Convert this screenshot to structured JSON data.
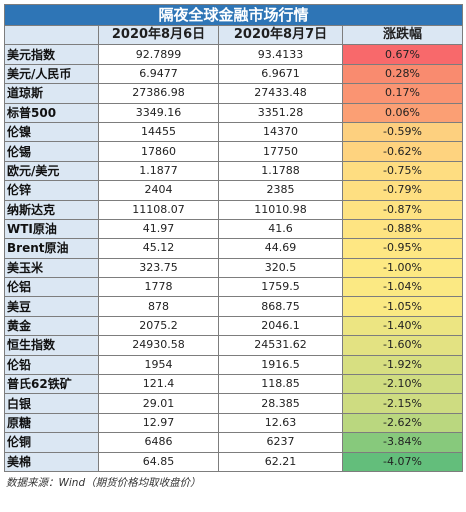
{
  "title": "隔夜全球金融市场行情",
  "columns": [
    "",
    "2020年8月6日",
    "2020年8月7日",
    "涨跌幅"
  ],
  "rows": [
    {
      "name": "美元指数",
      "d1": "92.7899",
      "d2": "93.4133",
      "chg": "0.67%",
      "color": "#f8696b"
    },
    {
      "name": "美元/人民币",
      "d1": "6.9477",
      "d2": "6.9671",
      "chg": "0.28%",
      "color": "#f98b6f"
    },
    {
      "name": "道琼斯",
      "d1": "27386.98",
      "d2": "27433.48",
      "chg": "0.17%",
      "color": "#fa9472"
    },
    {
      "name": "标普500",
      "d1": "3349.16",
      "d2": "3351.28",
      "chg": "0.06%",
      "color": "#fb9f74"
    },
    {
      "name": "伦镍",
      "d1": "14455",
      "d2": "14370",
      "chg": "-0.59%",
      "color": "#fdd07f"
    },
    {
      "name": "伦锡",
      "d1": "17860",
      "d2": "17750",
      "chg": "-0.62%",
      "color": "#fed37f"
    },
    {
      "name": "欧元/美元",
      "d1": "1.1877",
      "d2": "1.1788",
      "chg": "-0.75%",
      "color": "#fedd81"
    },
    {
      "name": "伦锌",
      "d1": "2404",
      "d2": "2385",
      "chg": "-0.79%",
      "color": "#fedf81"
    },
    {
      "name": "纳斯达克",
      "d1": "11108.07",
      "d2": "11010.98",
      "chg": "-0.87%",
      "color": "#fee382"
    },
    {
      "name": "WTI原油",
      "d1": "41.97",
      "d2": "41.6",
      "chg": "-0.88%",
      "color": "#fee482"
    },
    {
      "name": "Brent原油",
      "d1": "45.12",
      "d2": "44.69",
      "chg": "-0.95%",
      "color": "#fee783"
    },
    {
      "name": "美玉米",
      "d1": "323.75",
      "d2": "320.5",
      "chg": "-1.00%",
      "color": "#fde983"
    },
    {
      "name": "伦铝",
      "d1": "1778",
      "d2": "1759.5",
      "chg": "-1.04%",
      "color": "#fbe983"
    },
    {
      "name": "美豆",
      "d1": "878",
      "d2": "868.75",
      "chg": "-1.05%",
      "color": "#fae983"
    },
    {
      "name": "黄金",
      "d1": "2075.2",
      "d2": "2046.1",
      "chg": "-1.40%",
      "color": "#ecE582"
    },
    {
      "name": "恒生指数",
      "d1": "24930.58",
      "d2": "24531.62",
      "chg": "-1.60%",
      "color": "#e3e282"
    },
    {
      "name": "伦铅",
      "d1": "1954",
      "d2": "1916.5",
      "chg": "-1.92%",
      "color": "#d7df81"
    },
    {
      "name": "普氏62铁矿",
      "d1": "121.4",
      "d2": "118.85",
      "chg": "-2.10%",
      "color": "#d0dd81"
    },
    {
      "name": "白银",
      "d1": "29.01",
      "d2": "28.385",
      "chg": "-2.15%",
      "color": "#cedc81"
    },
    {
      "name": "原糖",
      "d1": "12.97",
      "d2": "12.63",
      "chg": "-2.62%",
      "color": "#bad77f"
    },
    {
      "name": "伦铜",
      "d1": "6486",
      "d2": "6237",
      "chg": "-3.84%",
      "color": "#87c97c"
    },
    {
      "name": "美棉",
      "d1": "64.85",
      "d2": "62.21",
      "chg": "-4.07%",
      "color": "#63be7b"
    }
  ],
  "source": "数据来源：Wind（期货价格均取收盘价）"
}
